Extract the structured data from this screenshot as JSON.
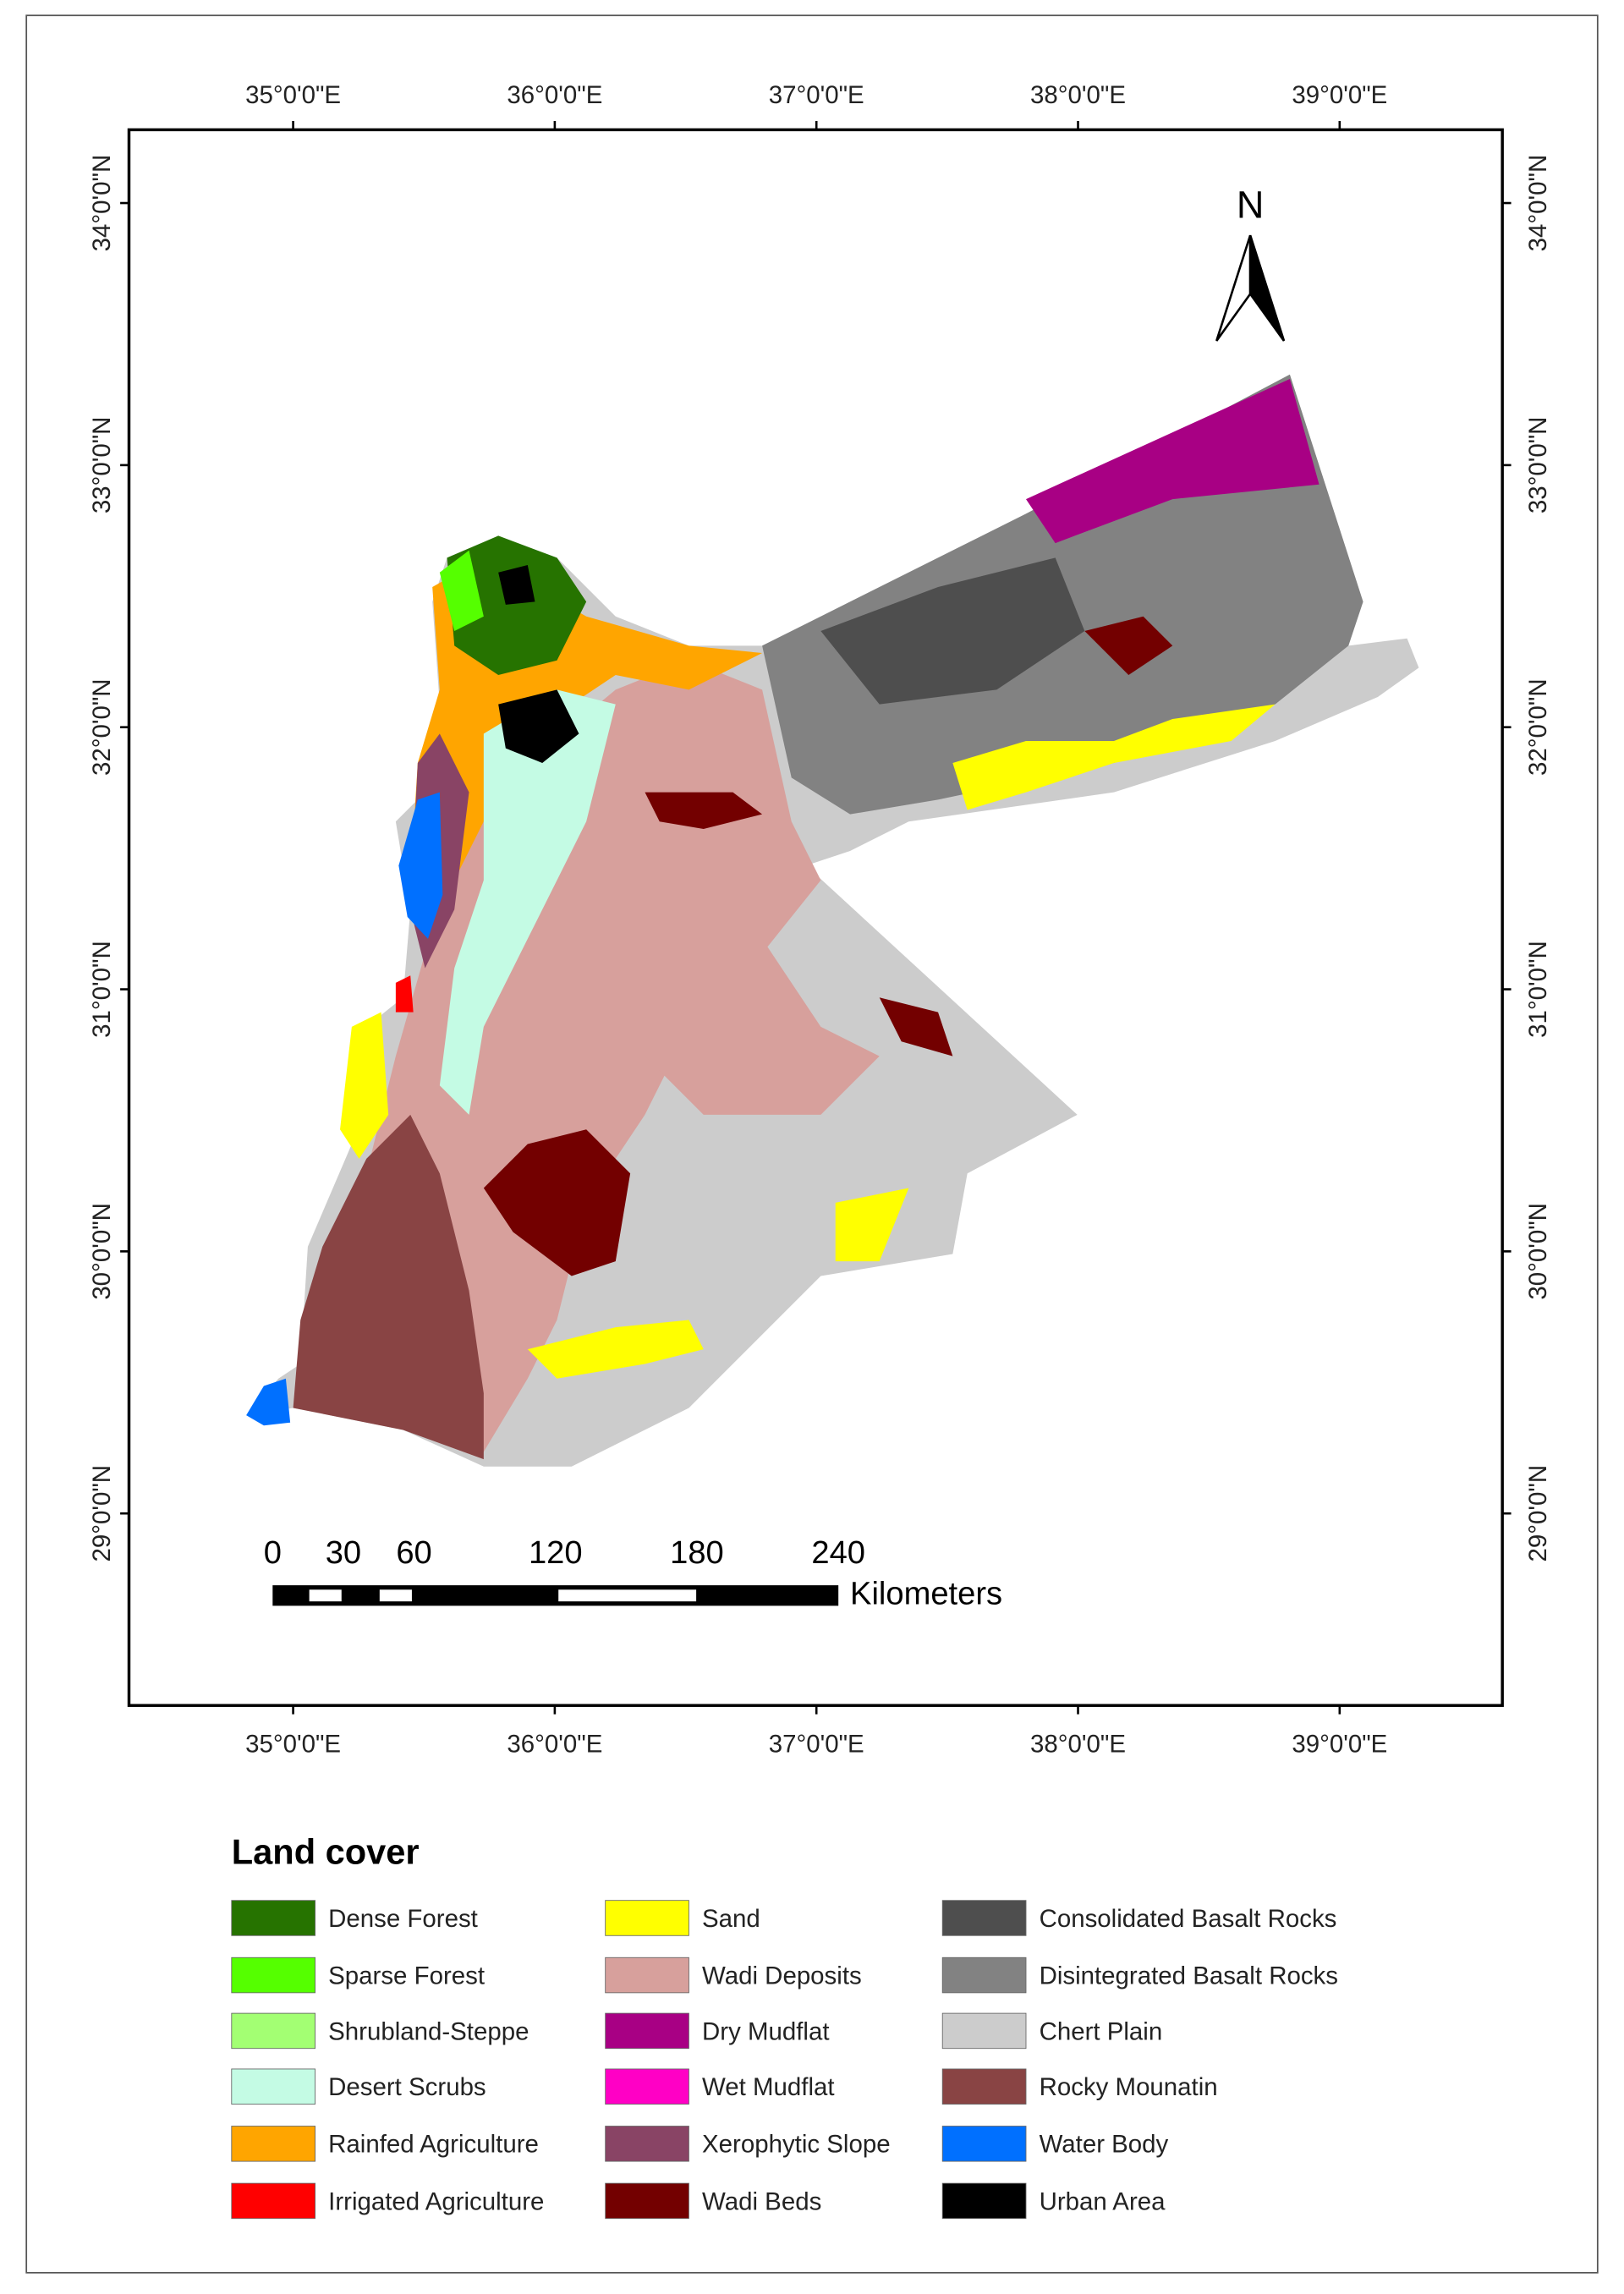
{
  "map": {
    "longitude_labels": [
      "35°0'0\"E",
      "36°0'0\"E",
      "37°0'0\"E",
      "38°0'0\"E",
      "39°0'0\"E"
    ],
    "latitude_labels": [
      "34°0'0\"N",
      "33°0'0\"N",
      "32°0'0\"N",
      "31°0'0\"N",
      "30°0'0\"N",
      "29°0'0\"N"
    ],
    "north_arrow": "N",
    "scale_bar": {
      "labels": [
        0,
        30,
        60,
        120,
        180,
        240
      ],
      "unit": "Kilometers"
    }
  },
  "legend": {
    "title": "Land cover",
    "items": [
      {
        "label": "Dense Forest",
        "color": "#267300"
      },
      {
        "label": "Sparse Forest",
        "color": "#55ff00"
      },
      {
        "label": "Shrubland-Steppe",
        "color": "#a3ff73"
      },
      {
        "label": "Desert Scrubs",
        "color": "#c4fbe4"
      },
      {
        "label": "Rainfed Agriculture",
        "color": "#ffa500"
      },
      {
        "label": "Irrigated Agriculture",
        "color": "#ff0000"
      },
      {
        "label": "Sand",
        "color": "#ffff00"
      },
      {
        "label": "Wadi Deposits",
        "color": "#d7a09c"
      },
      {
        "label": "Dry Mudflat",
        "color": "#a80084"
      },
      {
        "label": "Wet Mudflat",
        "color": "#ff00c5"
      },
      {
        "label": "Xerophytic Slope",
        "color": "#894465"
      },
      {
        "label": "Wadi Beds",
        "color": "#730000"
      },
      {
        "label": "Consolidated Basalt Rocks",
        "color": "#4e4e4e"
      },
      {
        "label": "Disintegrated Basalt Rocks",
        "color": "#828282"
      },
      {
        "label": "Chert Plain",
        "color": "#cccccc"
      },
      {
        "label": "Rocky Mounatin",
        "color": "#894444"
      },
      {
        "label": "Water Body",
        "color": "#0070ff"
      },
      {
        "label": "Urban Area",
        "color": "#000000"
      }
    ]
  }
}
